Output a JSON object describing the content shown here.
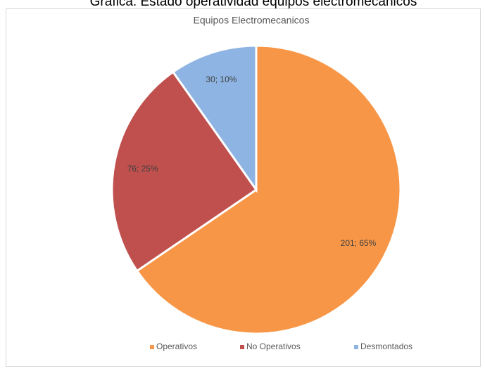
{
  "caption": "Gráfica: Estado operatividad equipos electromecánicos",
  "chart_data": {
    "type": "pie",
    "title": "Equipos Electromecanicos",
    "categories": [
      "Operativos",
      "No Operativos",
      "Desmontados"
    ],
    "values": [
      201,
      76,
      30
    ],
    "value_labels": [
      "201; 65%",
      "76; 25%",
      "30; 10%"
    ],
    "colors": [
      "#f79646",
      "#c0504d",
      "#8eb4e3"
    ],
    "legend": "bottom"
  }
}
